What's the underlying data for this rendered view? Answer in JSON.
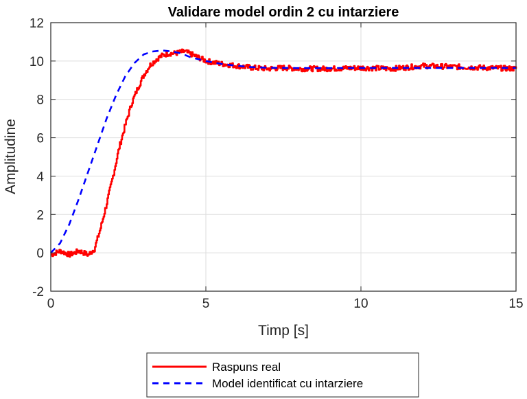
{
  "chart_data": {
    "type": "line",
    "title": "Validare model ordin 2 cu intarziere",
    "xlabel": "Timp [s]",
    "ylabel": "Amplitudine",
    "xlim": [
      0,
      15
    ],
    "ylim": [
      -2,
      12
    ],
    "xticks": [
      0,
      5,
      10,
      15
    ],
    "yticks": [
      -2,
      0,
      2,
      4,
      6,
      8,
      10,
      12
    ],
    "grid": true,
    "legend_position": "below-outside",
    "series": [
      {
        "name": "Raspuns real",
        "color": "#ff0000",
        "style": "solid",
        "x": [
          0,
          0.3,
          0.6,
          0.9,
          1.2,
          1.4,
          1.6,
          1.8,
          2.0,
          2.2,
          2.4,
          2.6,
          2.8,
          3.0,
          3.2,
          3.4,
          3.6,
          3.8,
          4.0,
          4.3,
          4.6,
          5.0,
          5.5,
          6.0,
          6.5,
          7.0,
          7.5,
          8.0,
          9.0,
          10.0,
          11.0,
          12.0,
          13.0,
          14.0,
          15.0
        ],
        "values": [
          -0.1,
          0.1,
          -0.1,
          0.1,
          -0.1,
          0.2,
          1.3,
          2.6,
          4.0,
          5.5,
          6.7,
          7.8,
          8.6,
          9.3,
          9.8,
          10.1,
          10.3,
          10.4,
          10.4,
          10.5,
          10.3,
          10.0,
          9.85,
          9.75,
          9.65,
          9.6,
          9.65,
          9.6,
          9.6,
          9.65,
          9.6,
          9.75,
          9.7,
          9.65,
          9.6
        ]
      },
      {
        "name": "Model identificat cu intarziere",
        "color": "#0000ff",
        "style": "dashed",
        "x": [
          0,
          0.3,
          0.6,
          0.9,
          1.2,
          1.5,
          1.8,
          2.1,
          2.4,
          2.7,
          3.0,
          3.3,
          3.6,
          3.9,
          4.2,
          4.5,
          5.0,
          5.5,
          6.0,
          6.5,
          7.0,
          8.0,
          9.0,
          10.0,
          12.0,
          15.0
        ],
        "values": [
          0.0,
          0.5,
          1.5,
          2.8,
          4.2,
          5.6,
          7.0,
          8.2,
          9.2,
          9.9,
          10.35,
          10.5,
          10.55,
          10.5,
          10.4,
          10.2,
          10.0,
          9.85,
          9.75,
          9.68,
          9.65,
          9.63,
          9.63,
          9.64,
          9.64,
          9.64
        ]
      }
    ]
  }
}
